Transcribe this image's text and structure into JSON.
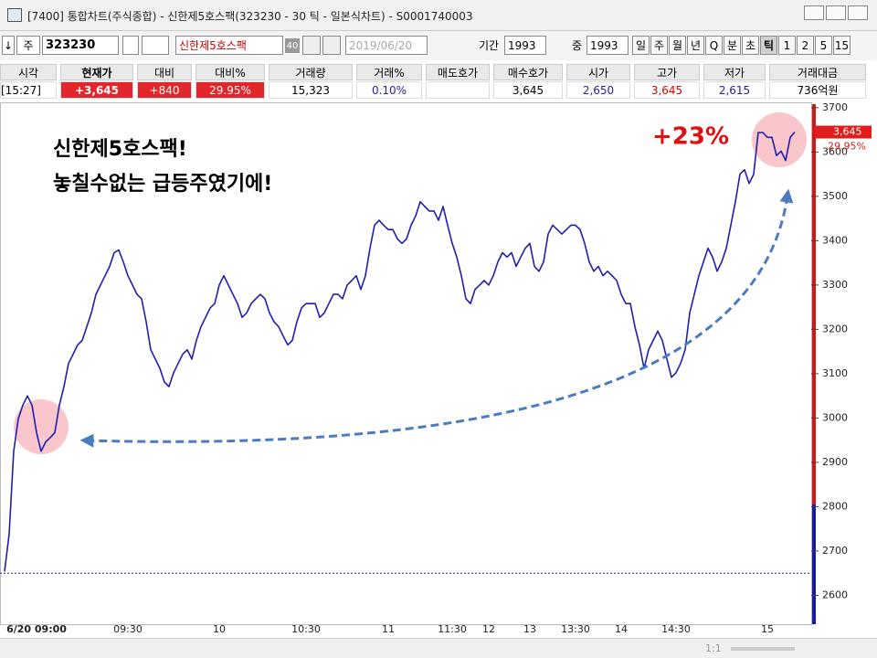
{
  "window": {
    "title": "[7400] 통합차트(주식종합) - 신한제5호스팩(323230 - 30 틱 - 일본식차트) - S0001740003"
  },
  "toolbar": {
    "arrow": "↓",
    "market": "주",
    "code": "323230",
    "name": "신한제5호스팩",
    "count": "40",
    "date": "2019/06/20",
    "period_label": "기간",
    "period": "1993",
    "mid_label": "중",
    "mid": "1993",
    "periods": [
      "일",
      "주",
      "월",
      "년",
      "Q",
      "분",
      "초",
      "틱",
      "1",
      "2",
      "5",
      "15"
    ],
    "selected_period": 7
  },
  "quote_table": {
    "headers": [
      "시각",
      "현재가",
      "대비",
      "대비%",
      "거래량",
      "거래%",
      "매도호가",
      "매수호가",
      "시가",
      "고가",
      "저가",
      "거래대금"
    ],
    "row": [
      "[15:27]",
      "+3,645",
      "+840",
      "29.95%",
      "15,323",
      "0.10%",
      null,
      "3,645",
      "2,650",
      "3,645",
      "2,615",
      "736억원"
    ]
  },
  "bottom_bar": {
    "zoom": "1:1"
  },
  "chart_data": {
    "type": "line",
    "annotations": [
      "신한제5호스팩!",
      "놓칠수없는 급등주였기에!",
      "+23%"
    ],
    "last_label": "3,645",
    "last_change": "29.95%",
    "reference_line": 2650,
    "prev_close": 2805,
    "categories": [
      null,
      null,
      null,
      null,
      null,
      null,
      null,
      "6/20 09:00",
      null,
      null,
      null,
      null,
      null,
      null,
      null,
      null,
      null,
      null,
      null,
      null,
      null,
      null,
      null,
      null,
      null,
      null,
      null,
      "09:30",
      null,
      null,
      null,
      null,
      null,
      null,
      null,
      null,
      null,
      null,
      null,
      null,
      null,
      null,
      null,
      null,
      null,
      null,
      null,
      "10",
      null,
      null,
      null,
      null,
      null,
      null,
      null,
      null,
      null,
      null,
      null,
      null,
      null,
      null,
      null,
      null,
      null,
      null,
      "10:30",
      null,
      null,
      null,
      null,
      null,
      null,
      null,
      null,
      null,
      null,
      null,
      null,
      null,
      null,
      null,
      null,
      null,
      "11",
      null,
      null,
      null,
      null,
      null,
      null,
      null,
      null,
      null,
      null,
      null,
      null,
      null,
      "11:30",
      null,
      null,
      null,
      null,
      null,
      null,
      null,
      "12",
      null,
      null,
      null,
      null,
      null,
      null,
      null,
      null,
      "13",
      null,
      null,
      null,
      null,
      null,
      null,
      null,
      null,
      null,
      "13:30",
      null,
      null,
      null,
      null,
      null,
      null,
      null,
      null,
      null,
      "14",
      null,
      null,
      null,
      null,
      null,
      null,
      null,
      null,
      null,
      null,
      null,
      "14:30",
      null,
      null,
      null,
      null,
      null,
      null,
      null,
      null,
      null,
      null,
      null,
      null,
      null,
      null,
      null,
      null,
      null,
      null,
      null,
      "15",
      null,
      null,
      null,
      null,
      null,
      null
    ],
    "series": [
      {
        "color": "#1f1fae",
        "values": [
          2654,
          2738,
          2925,
          2998,
          3029,
          3050,
          3029,
          2967,
          2925,
          2946,
          2956,
          2967,
          3029,
          3071,
          3123,
          3144,
          3165,
          3175,
          3206,
          3237,
          3279,
          3300,
          3321,
          3342,
          3373,
          3379,
          3352,
          3321,
          3300,
          3279,
          3269,
          3217,
          3154,
          3133,
          3112,
          3081,
          3071,
          3102,
          3123,
          3144,
          3154,
          3133,
          3175,
          3206,
          3227,
          3248,
          3258,
          3300,
          3321,
          3300,
          3279,
          3258,
          3227,
          3237,
          3258,
          3269,
          3279,
          3269,
          3237,
          3217,
          3206,
          3185,
          3165,
          3175,
          3217,
          3248,
          3258,
          3258,
          3258,
          3227,
          3237,
          3258,
          3279,
          3279,
          3269,
          3300,
          3310,
          3321,
          3290,
          3321,
          3383,
          3435,
          3446,
          3435,
          3425,
          3425,
          3404,
          3394,
          3404,
          3435,
          3456,
          3488,
          3477,
          3467,
          3467,
          3446,
          3477,
          3435,
          3394,
          3363,
          3321,
          3269,
          3258,
          3290,
          3300,
          3310,
          3300,
          3321,
          3352,
          3373,
          3363,
          3373,
          3342,
          3363,
          3383,
          3394,
          3342,
          3331,
          3352,
          3415,
          3435,
          3425,
          3415,
          3425,
          3435,
          3435,
          3425,
          3394,
          3352,
          3331,
          3342,
          3321,
          3331,
          3321,
          3310,
          3279,
          3258,
          3258,
          3206,
          3165,
          3112,
          3154,
          3175,
          3196,
          3175,
          3133,
          3092,
          3102,
          3123,
          3154,
          3237,
          3279,
          3321,
          3352,
          3383,
          3363,
          3331,
          3352,
          3383,
          3435,
          3488,
          3550,
          3560,
          3529,
          3550,
          3644,
          3644,
          3633,
          3633,
          3592,
          3602,
          3581,
          3633,
          3645
        ]
      }
    ],
    "ylim": [
      2535,
      3712
    ],
    "yticks": [
      2600,
      2700,
      2800,
      2900,
      3000,
      3100,
      3200,
      3300,
      3400,
      3500,
      3600,
      3700
    ],
    "grid": false
  }
}
